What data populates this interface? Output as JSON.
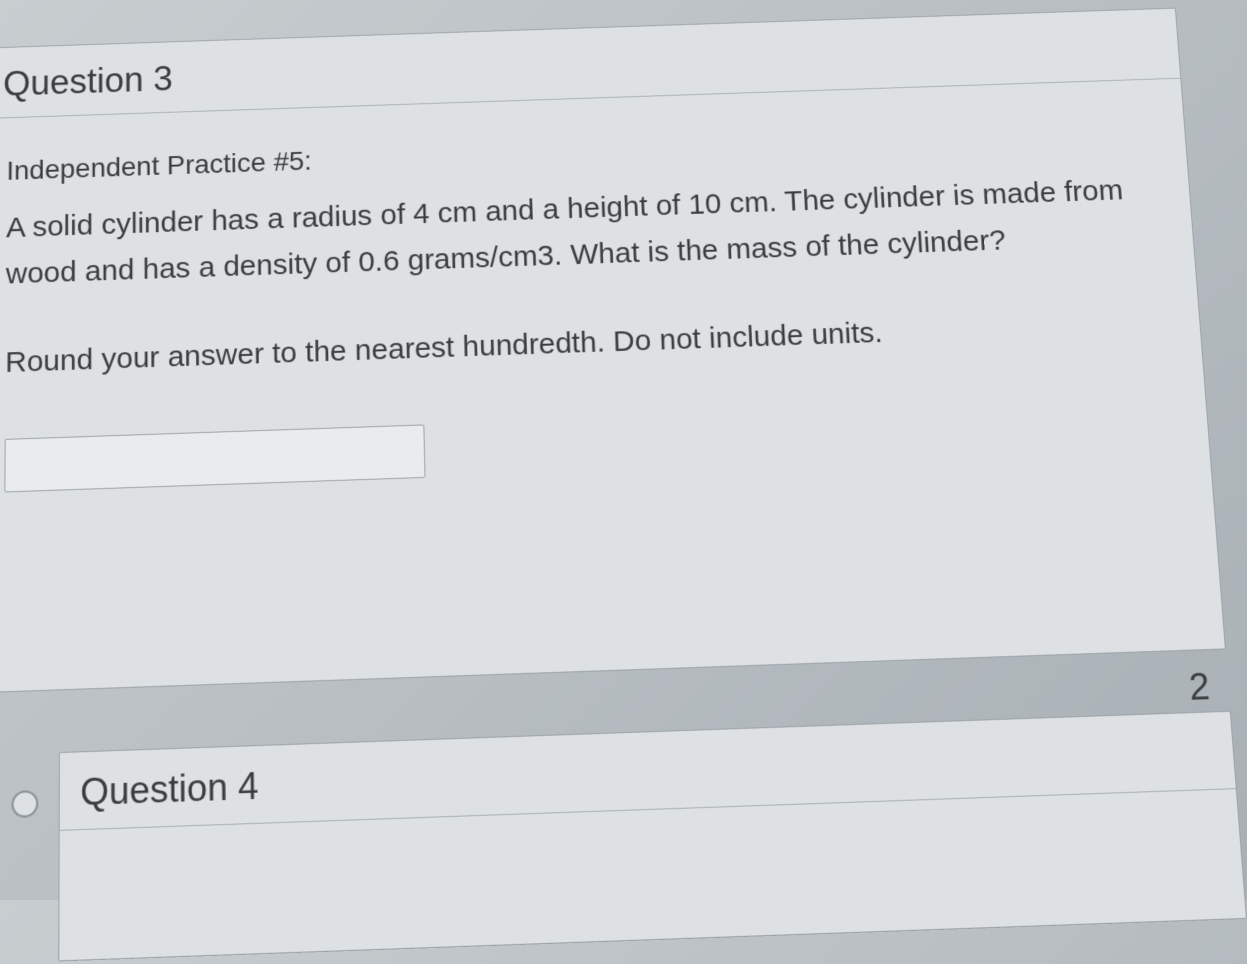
{
  "question3": {
    "header": "Question 3",
    "practice_label": "Independent Practice #5:",
    "problem": "A solid cylinder has a radius of 4 cm and a height of 10 cm. The cylinder is made from wood and has a density of 0.6 grams/cm3. What is the mass of the cylinder?",
    "instruction": "Round your answer to the nearest hundredth. Do not include units.",
    "answer_value": "",
    "points": "2"
  },
  "question4": {
    "header": "Question 4"
  },
  "colors": {
    "card_bg": "#dde1e3",
    "border": "#9ca3a8",
    "text": "#3a3d40",
    "page_bg_start": "#c8cdd0",
    "page_bg_end": "#a8b0b5"
  }
}
